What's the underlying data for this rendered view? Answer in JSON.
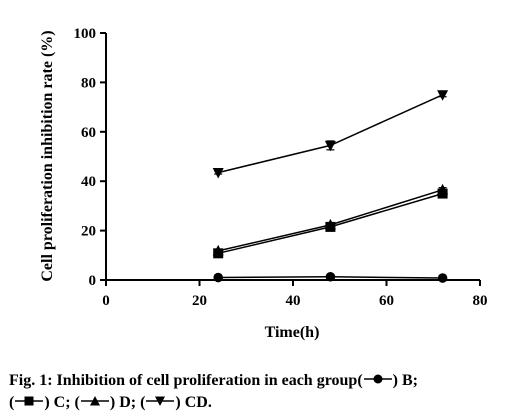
{
  "chart_data": {
    "type": "line",
    "title": "",
    "xlabel": "Time(h)",
    "ylabel": "Cell proliferation inhibition rate (%)",
    "xlim": [
      0,
      80
    ],
    "ylim": [
      0,
      100
    ],
    "xticks": [
      0,
      20,
      40,
      60,
      80
    ],
    "yticks": [
      0,
      20,
      40,
      60,
      80,
      100
    ],
    "grid": false,
    "x": [
      24,
      48,
      72
    ],
    "series": [
      {
        "name": "B",
        "marker": "circle",
        "values": [
          1.0,
          1.3,
          0.8
        ],
        "errors": [
          0.3,
          0.4,
          0.3
        ]
      },
      {
        "name": "C",
        "marker": "square",
        "values": [
          10.8,
          21.5,
          35.0
        ],
        "errors": [
          0.6,
          0.8,
          0.9
        ]
      },
      {
        "name": "D",
        "marker": "triangle-up",
        "values": [
          11.8,
          22.3,
          36.5
        ],
        "errors": [
          0.6,
          0.8,
          0.9
        ]
      },
      {
        "name": "CD",
        "marker": "triangle-down",
        "values": [
          43.5,
          54.5,
          75.0
        ],
        "errors": [
          0.6,
          1.8,
          0.8
        ]
      }
    ],
    "colors": {
      "line": "#000000",
      "marker": "#000000",
      "axis": "#000000"
    }
  },
  "caption": {
    "prefix": "Fig. 1: Inhibition of cell proliferation in each group(",
    "items": [
      {
        "symbol": "circle",
        "label": ") B;"
      },
      {
        "symbol": "square",
        "label": ") C;"
      },
      {
        "symbol": "triangle-up",
        "label": ") D;"
      },
      {
        "symbol": "triangle-down",
        "label": ") CD."
      }
    ]
  }
}
